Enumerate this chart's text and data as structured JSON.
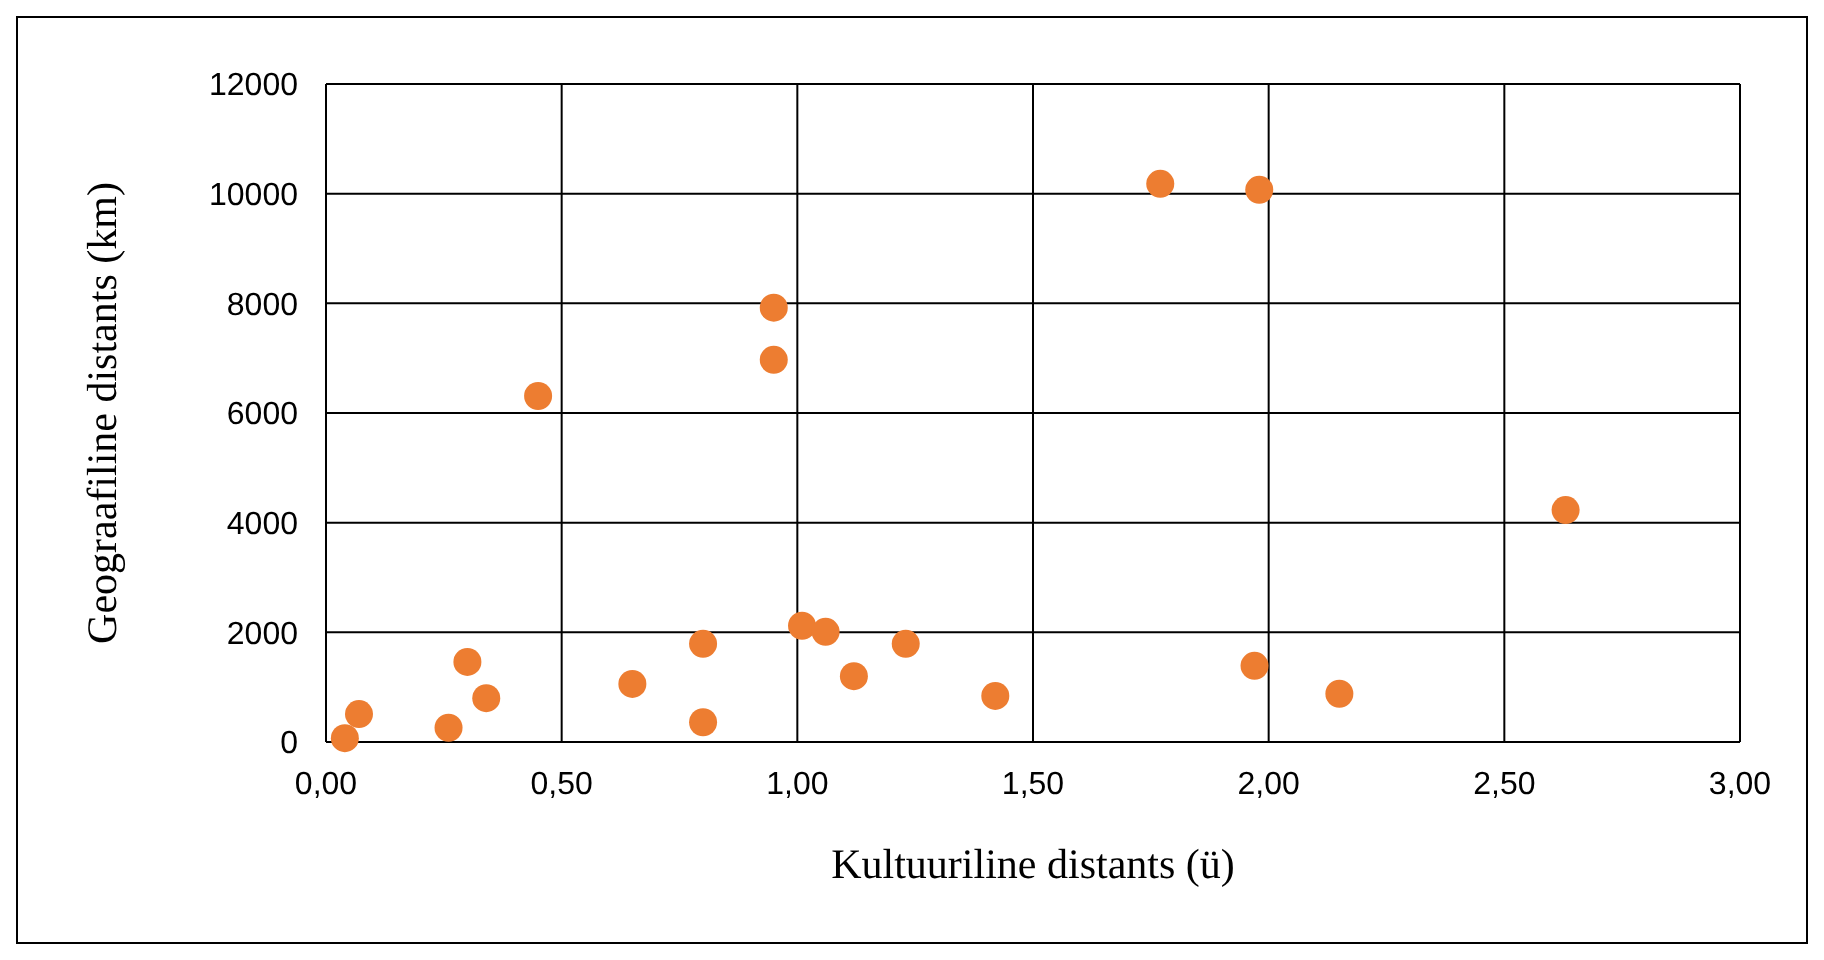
{
  "chart_data": {
    "type": "scatter",
    "xlabel": "Kultuuriline distants (ü)",
    "ylabel": "Geograafiline distants (km)",
    "grid": true,
    "marker": "circle",
    "xlim": [
      0,
      3
    ],
    "xticks": [
      {
        "value": 0,
        "label": "0,00"
      },
      {
        "value": 0.5,
        "label": "0,50"
      },
      {
        "value": 1,
        "label": "1,00"
      },
      {
        "value": 1.5,
        "label": "1,50"
      },
      {
        "value": 2,
        "label": "2,00"
      },
      {
        "value": 2.5,
        "label": "2,50"
      },
      {
        "value": 3,
        "label": "3,00"
      }
    ],
    "ylim": [
      0,
      12000
    ],
    "yticks": [
      0,
      2000,
      4000,
      6000,
      8000,
      10000,
      12000
    ],
    "series": [
      {
        "color": "#ed7d31",
        "x": [
          0.04,
          0.07,
          0.26,
          0.3,
          0.34,
          0.45,
          0.65,
          0.8,
          0.8,
          0.95,
          0.95,
          1.01,
          1.06,
          1.12,
          1.23,
          1.42,
          1.77,
          1.98,
          1.97,
          2.15,
          2.63
        ],
        "values": [
          70,
          510,
          260,
          1460,
          800,
          6310,
          1060,
          1790,
          360,
          7920,
          6970,
          2120,
          2010,
          1200,
          1790,
          840,
          10180,
          10070,
          1390,
          880,
          4230
        ]
      }
    ]
  }
}
